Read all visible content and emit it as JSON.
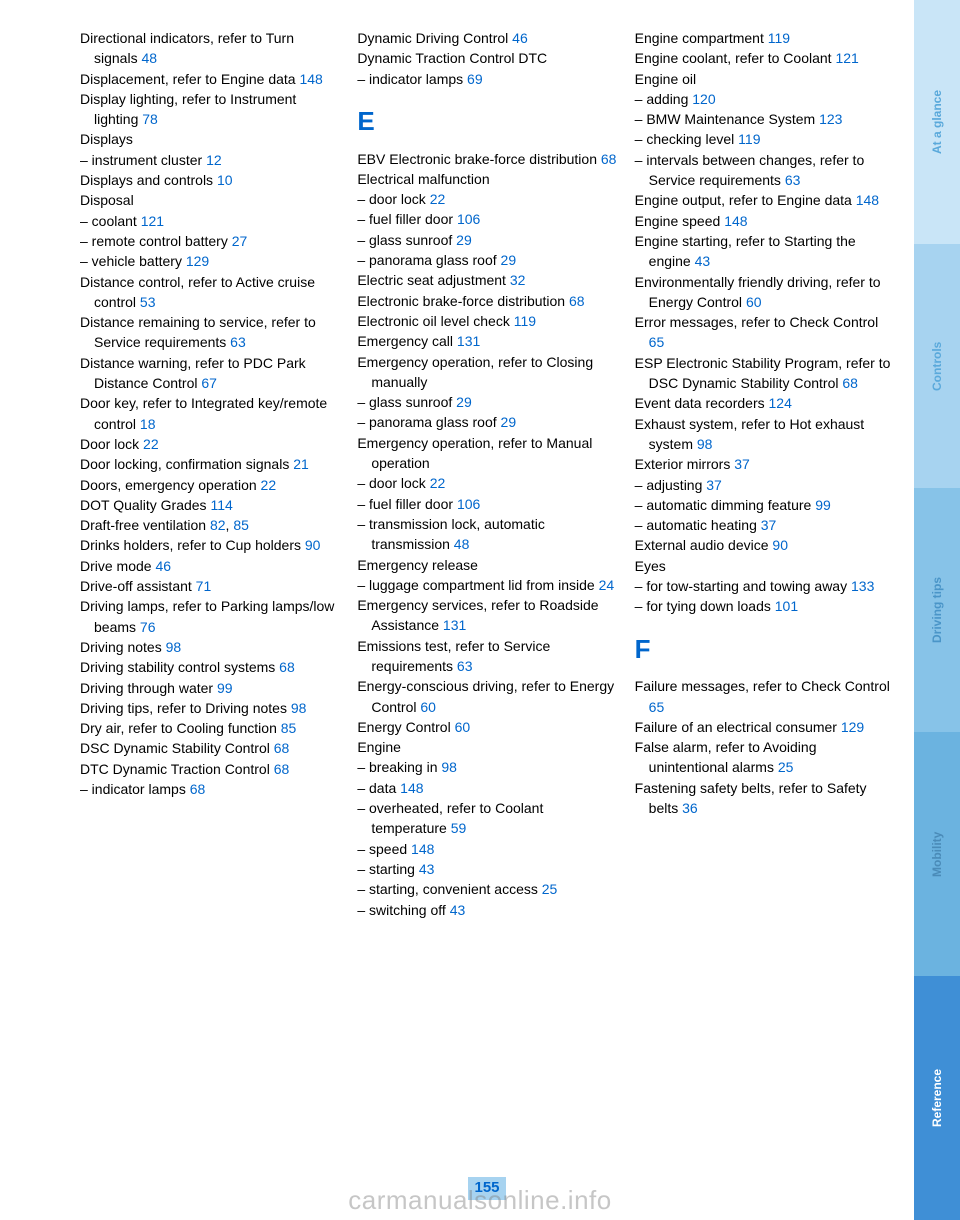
{
  "pageNumber": "155",
  "watermark": "carmanualsonline.info",
  "tabs": [
    {
      "label": "At a glance",
      "bg": "#c9e5f7",
      "color": "#5aa9db"
    },
    {
      "label": "Controls",
      "bg": "#a7d3f0",
      "color": "#5aa9db"
    },
    {
      "label": "Driving tips",
      "bg": "#87c3e8",
      "color": "#4a95c8"
    },
    {
      "label": "Mobility",
      "bg": "#6bb3e0",
      "color": "#4a8bb8"
    },
    {
      "label": "Reference",
      "bg": "#3f8fd6",
      "color": "#ffffff"
    }
  ],
  "col1": [
    {
      "t": "Directional indicators, refer to Turn signals ",
      "p": "48"
    },
    {
      "t": "Displacement, refer to Engine data ",
      "p": "148"
    },
    {
      "t": "Display lighting, refer to Instrument lighting ",
      "p": "78"
    },
    {
      "t": "Displays"
    },
    {
      "t": "– instrument cluster ",
      "p": "12"
    },
    {
      "t": "Displays and controls ",
      "p": "10"
    },
    {
      "t": "Disposal"
    },
    {
      "t": "– coolant ",
      "p": "121"
    },
    {
      "t": "– remote control battery ",
      "p": "27"
    },
    {
      "t": "– vehicle battery ",
      "p": "129"
    },
    {
      "t": "Distance control, refer to Active cruise control ",
      "p": "53"
    },
    {
      "t": "Distance remaining to service, refer to Service requirements ",
      "p": "63"
    },
    {
      "t": "Distance warning, refer to PDC Park Distance Control ",
      "p": "67"
    },
    {
      "t": "Door key, refer to Integrated key/remote control ",
      "p": "18"
    },
    {
      "t": "Door lock ",
      "p": "22"
    },
    {
      "t": "Door locking, confirmation signals ",
      "p": "21"
    },
    {
      "t": "Doors, emergency operation ",
      "p": "22"
    },
    {
      "t": "DOT Quality Grades ",
      "p": "114"
    },
    {
      "t": "Draft-free ventilation ",
      "p": "82",
      "sep": ", ",
      "p2": "85"
    },
    {
      "t": "Drinks holders, refer to Cup holders ",
      "p": "90"
    },
    {
      "t": "Drive mode ",
      "p": "46"
    },
    {
      "t": "Drive-off assistant ",
      "p": "71"
    },
    {
      "t": "Driving lamps, refer to Parking lamps/low beams ",
      "p": "76"
    },
    {
      "t": "Driving notes ",
      "p": "98"
    },
    {
      "t": "Driving stability control systems ",
      "p": "68"
    },
    {
      "t": "Driving through water ",
      "p": "99"
    },
    {
      "t": "Driving tips, refer to Driving notes ",
      "p": "98"
    },
    {
      "t": "Dry air, refer to Cooling function ",
      "p": "85"
    },
    {
      "t": "DSC Dynamic Stability Control ",
      "p": "68"
    },
    {
      "t": "DTC Dynamic Traction Control ",
      "p": "68"
    },
    {
      "t": "– indicator lamps ",
      "p": "68"
    }
  ],
  "col2top": [
    {
      "t": "Dynamic Driving Control ",
      "p": "46"
    },
    {
      "t": "Dynamic Traction Control DTC"
    },
    {
      "t": "– indicator lamps ",
      "p": "69"
    }
  ],
  "letter2": "E",
  "col2": [
    {
      "t": "EBV Electronic brake-force distribution ",
      "p": "68"
    },
    {
      "t": "Electrical malfunction"
    },
    {
      "t": "– door lock ",
      "p": "22"
    },
    {
      "t": "– fuel filler door ",
      "p": "106"
    },
    {
      "t": "– glass sunroof ",
      "p": "29"
    },
    {
      "t": "– panorama glass roof ",
      "p": "29"
    },
    {
      "t": "Electric seat adjustment ",
      "p": "32"
    },
    {
      "t": "Electronic brake-force distribution ",
      "p": "68"
    },
    {
      "t": "Electronic oil level check ",
      "p": "119"
    },
    {
      "t": "Emergency call ",
      "p": "131"
    },
    {
      "t": "Emergency operation, refer to Closing manually"
    },
    {
      "t": "– glass sunroof ",
      "p": "29"
    },
    {
      "t": "– panorama glass roof ",
      "p": "29"
    },
    {
      "t": "Emergency operation, refer to Manual operation"
    },
    {
      "t": "– door lock ",
      "p": "22"
    },
    {
      "t": "– fuel filler door ",
      "p": "106"
    },
    {
      "t": "– transmission lock, automatic transmission ",
      "p": "48"
    },
    {
      "t": "Emergency release"
    },
    {
      "t": "– luggage compartment lid from inside ",
      "p": "24"
    },
    {
      "t": "Emergency services, refer to Roadside Assistance ",
      "p": "131"
    },
    {
      "t": "Emissions test, refer to Service requirements ",
      "p": "63"
    },
    {
      "t": "Energy-conscious driving, refer to Energy Control ",
      "p": "60"
    },
    {
      "t": "Energy Control ",
      "p": "60"
    },
    {
      "t": "Engine"
    },
    {
      "t": "– breaking in ",
      "p": "98"
    },
    {
      "t": "– data ",
      "p": "148"
    },
    {
      "t": "– overheated, refer to Coolant temperature ",
      "p": "59"
    },
    {
      "t": "– speed ",
      "p": "148"
    },
    {
      "t": "– starting ",
      "p": "43"
    },
    {
      "t": "– starting, convenient access ",
      "p": "25"
    },
    {
      "t": "– switching off ",
      "p": "43"
    }
  ],
  "col3top": [
    {
      "t": "Engine compartment ",
      "p": "119"
    },
    {
      "t": "Engine coolant, refer to Coolant ",
      "p": "121"
    },
    {
      "t": "Engine oil"
    },
    {
      "t": "– adding ",
      "p": "120"
    },
    {
      "t": "– BMW Maintenance System ",
      "p": "123"
    },
    {
      "t": "– checking level ",
      "p": "119"
    },
    {
      "t": "– intervals between changes, refer to Service requirements ",
      "p": "63"
    },
    {
      "t": "Engine output, refer to Engine data ",
      "p": "148"
    },
    {
      "t": "Engine speed ",
      "p": "148"
    },
    {
      "t": "Engine starting, refer to Starting the engine ",
      "p": "43"
    },
    {
      "t": "Environmentally friendly driving, refer to Energy Control ",
      "p": "60"
    },
    {
      "t": "Error messages, refer to Check Control ",
      "p": "65"
    },
    {
      "t": "ESP Electronic Stability Program, refer to DSC Dynamic Stability Control ",
      "p": "68"
    },
    {
      "t": "Event data recorders ",
      "p": "124"
    },
    {
      "t": "Exhaust system, refer to Hot exhaust system ",
      "p": "98"
    },
    {
      "t": "Exterior mirrors ",
      "p": "37"
    },
    {
      "t": "– adjusting ",
      "p": "37"
    },
    {
      "t": "– automatic dimming feature ",
      "p": "99"
    },
    {
      "t": "– automatic heating ",
      "p": "37"
    },
    {
      "t": "External audio device ",
      "p": "90"
    },
    {
      "t": "Eyes"
    },
    {
      "t": "– for tow-starting and towing away ",
      "p": "133"
    },
    {
      "t": "– for tying down loads ",
      "p": "101"
    }
  ],
  "letter3": "F",
  "col3": [
    {
      "t": "Failure messages, refer to Check Control ",
      "p": "65"
    },
    {
      "t": "Failure of an electrical consumer ",
      "p": "129"
    },
    {
      "t": "False alarm, refer to Avoiding unintentional alarms ",
      "p": "25"
    },
    {
      "t": "Fastening safety belts, refer to Safety belts ",
      "p": "36"
    }
  ]
}
